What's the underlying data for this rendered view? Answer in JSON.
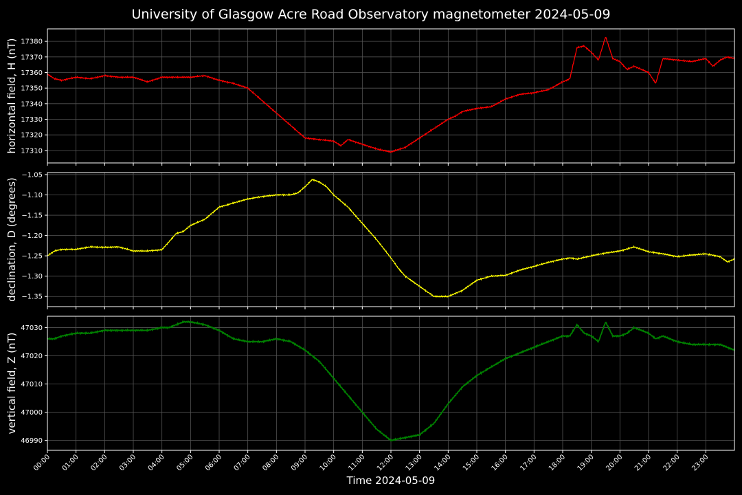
{
  "chart_data": {
    "type": "line",
    "title": "University of Glasgow Acre Road Observatory magnetometer 2024-05-09",
    "xlabel": "Time 2024-05-09",
    "x_unit": "hour of day",
    "xlim": [
      0,
      24
    ],
    "x_ticks": [
      "00:00",
      "01:00",
      "02:00",
      "03:00",
      "04:00",
      "05:00",
      "06:00",
      "07:00",
      "08:00",
      "09:00",
      "10:00",
      "11:00",
      "12:00",
      "13:00",
      "14:00",
      "15:00",
      "16:00",
      "17:00",
      "18:00",
      "19:00",
      "20:00",
      "21:00",
      "22:00",
      "23:00"
    ],
    "grid": true,
    "panels": [
      {
        "ylabel": "horizontal field, H (nT)",
        "color": "#ff0000",
        "ylim": [
          17302,
          17388
        ],
        "y_ticks": [
          17310,
          17320,
          17330,
          17340,
          17350,
          17360,
          17370,
          17380
        ],
        "y_tick_labels": [
          "17310",
          "17320",
          "17330",
          "17340",
          "17350",
          "17360",
          "17370",
          "17380"
        ],
        "series": [
          {
            "x": [
              0,
              0.25,
              0.5,
              1,
              1.5,
              2,
              2.5,
              3,
              3.5,
              4,
              4.5,
              5,
              5.5,
              6,
              6.5,
              7,
              7.5,
              8,
              8.5,
              9,
              9.5,
              10,
              10.25,
              10.5,
              11,
              11.5,
              12,
              12.5,
              13,
              13.5,
              14,
              14.25,
              14.5,
              15,
              15.5,
              16,
              16.5,
              17,
              17.5,
              18,
              18.25,
              18.5,
              18.75,
              19,
              19.25,
              19.5,
              19.75,
              20,
              20.25,
              20.5,
              20.75,
              21,
              21.25,
              21.5,
              22,
              22.5,
              23,
              23.25,
              23.5,
              23.75,
              24
            ],
            "y": [
              17359,
              17356,
              17355,
              17357,
              17356,
              17358,
              17357,
              17357,
              17354,
              17357,
              17357,
              17357,
              17358,
              17355,
              17353,
              17350,
              17342,
              17334,
              17326,
              17318,
              17317,
              17316,
              17313,
              17317,
              17314,
              17311,
              17309,
              17312,
              17318,
              17324,
              17330,
              17332,
              17335,
              17337,
              17338,
              17343,
              17346,
              17347,
              17349,
              17354,
              17356,
              17376,
              17377,
              17373,
              17368,
              17383,
              17369,
              17367,
              17362,
              17364,
              17362,
              17360,
              17353,
              17369,
              17368,
              17367,
              17369,
              17364,
              17368,
              17370,
              17369
            ]
          }
        ]
      },
      {
        "ylabel": "declination, D (degrees)",
        "color": "#ffff00",
        "ylim": [
          -1.375,
          -1.045
        ],
        "y_ticks": [
          -1.35,
          -1.3,
          -1.25,
          -1.2,
          -1.15,
          -1.1,
          -1.05
        ],
        "y_tick_labels": [
          "−1.35",
          "−1.30",
          "−1.25",
          "−1.20",
          "−1.15",
          "−1.10",
          "−1.05"
        ],
        "series": [
          {
            "x": [
              0,
              0.25,
              0.5,
              1,
              1.5,
              2,
              2.5,
              3,
              3.5,
              4,
              4.25,
              4.5,
              4.75,
              5,
              5.5,
              6,
              6.5,
              7,
              7.5,
              8,
              8.5,
              8.75,
              9,
              9.25,
              9.5,
              9.75,
              10,
              10.5,
              11,
              11.5,
              12,
              12.25,
              12.5,
              13,
              13.5,
              14,
              14.5,
              15,
              15.5,
              16,
              16.5,
              17,
              17.5,
              18,
              18.25,
              18.5,
              19,
              19.5,
              20,
              20.5,
              21,
              21.5,
              22,
              22.5,
              23,
              23.5,
              23.75,
              24
            ],
            "y": [
              -1.25,
              -1.238,
              -1.234,
              -1.234,
              -1.228,
              -1.229,
              -1.228,
              -1.238,
              -1.238,
              -1.235,
              -1.215,
              -1.195,
              -1.19,
              -1.175,
              -1.16,
              -1.13,
              -1.12,
              -1.11,
              -1.104,
              -1.1,
              -1.1,
              -1.095,
              -1.08,
              -1.062,
              -1.068,
              -1.08,
              -1.1,
              -1.13,
              -1.17,
              -1.21,
              -1.255,
              -1.28,
              -1.3,
              -1.325,
              -1.35,
              -1.35,
              -1.335,
              -1.31,
              -1.3,
              -1.298,
              -1.285,
              -1.276,
              -1.266,
              -1.258,
              -1.255,
              -1.258,
              -1.25,
              -1.243,
              -1.238,
              -1.228,
              -1.24,
              -1.245,
              -1.252,
              -1.248,
              -1.245,
              -1.252,
              -1.265,
              -1.258
            ]
          }
        ]
      },
      {
        "ylabel": "vertical field, Z (nT)",
        "color": "#008000",
        "ylim": [
          46986.5,
          47034
        ],
        "y_ticks": [
          46990,
          47000,
          47010,
          47020,
          47030
        ],
        "y_tick_labels": [
          "46990",
          "47000",
          "47010",
          "47020",
          "47030"
        ],
        "series": [
          {
            "x": [
              0,
              0.25,
              0.5,
              1,
              1.5,
              2,
              2.5,
              3,
              3.5,
              4,
              4.25,
              4.5,
              4.75,
              5,
              5.5,
              6,
              6.5,
              7,
              7.5,
              8,
              8.5,
              9,
              9.5,
              10,
              10.5,
              11,
              11.5,
              12,
              12.5,
              13,
              13.5,
              14,
              14.5,
              15,
              15.5,
              16,
              16.5,
              17,
              17.5,
              18,
              18.25,
              18.5,
              18.75,
              19,
              19.25,
              19.5,
              19.75,
              20,
              20.25,
              20.5,
              20.75,
              21,
              21.25,
              21.5,
              22,
              22.5,
              23,
              23.5,
              24
            ],
            "y": [
              47026,
              47026,
              47027,
              47028,
              47028,
              47029,
              47029,
              47029,
              47029,
              47030,
              47030,
              47031,
              47032,
              47032,
              47031,
              47029,
              47026,
              47025,
              47025,
              47026,
              47025,
              47022,
              47018,
              47012,
              47006,
              47000,
              46994,
              46990,
              46991,
              46992,
              46996,
              47003,
              47009,
              47013,
              47016,
              47019,
              47021,
              47023,
              47025,
              47027,
              47027,
              47031,
              47028,
              47027,
              47025,
              47032,
              47027,
              47027,
              47028,
              47030,
              47029,
              47028,
              47026,
              47027,
              47025,
              47024,
              47024,
              47024,
              47022
            ]
          }
        ]
      }
    ]
  }
}
